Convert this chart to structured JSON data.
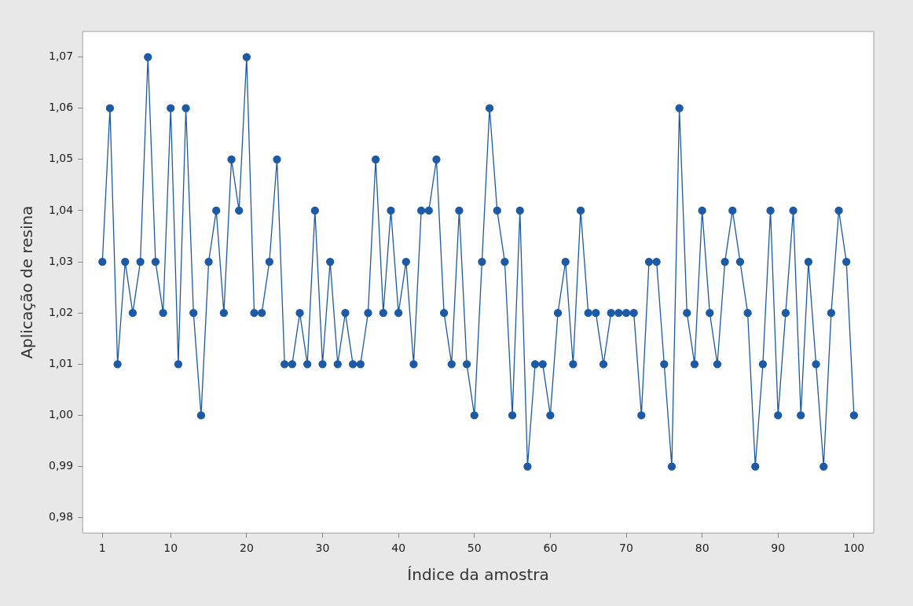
{
  "chart_data": {
    "type": "line",
    "xlabel": "Índice da amostra",
    "ylabel": "Aplicação de resina",
    "x": [
      1,
      2,
      3,
      4,
      5,
      6,
      7,
      8,
      9,
      10,
      11,
      12,
      13,
      14,
      15,
      16,
      17,
      18,
      19,
      20,
      21,
      22,
      23,
      24,
      25,
      26,
      27,
      28,
      29,
      30,
      31,
      32,
      33,
      34,
      35,
      36,
      37,
      38,
      39,
      40,
      41,
      42,
      43,
      44,
      45,
      46,
      47,
      48,
      49,
      50,
      51,
      52,
      53,
      54,
      55,
      56,
      57,
      58,
      59,
      60,
      61,
      62,
      63,
      64,
      65,
      66,
      67,
      68,
      69,
      70,
      71,
      72,
      73,
      74,
      75,
      76,
      77,
      78,
      79,
      80,
      81,
      82,
      83,
      84,
      85,
      86,
      87,
      88,
      89,
      90,
      91,
      92,
      93,
      94,
      95,
      96,
      97,
      98,
      99,
      100
    ],
    "series": [
      {
        "color": "#1c5aa6",
        "values": [
          1.03,
          1.06,
          1.01,
          1.03,
          1.02,
          1.03,
          1.07,
          1.03,
          1.02,
          1.06,
          1.01,
          1.06,
          1.02,
          1.0,
          1.03,
          1.04,
          1.02,
          1.05,
          1.04,
          1.07,
          1.02,
          1.02,
          1.03,
          1.05,
          1.01,
          1.01,
          1.02,
          1.01,
          1.04,
          1.01,
          1.03,
          1.01,
          1.02,
          1.01,
          1.01,
          1.02,
          1.05,
          1.02,
          1.04,
          1.02,
          1.03,
          1.01,
          1.04,
          1.04,
          1.05,
          1.02,
          1.01,
          1.04,
          1.01,
          1.0,
          1.03,
          1.06,
          1.04,
          1.03,
          1.0,
          1.04,
          0.99,
          1.01,
          1.01,
          1.0,
          1.02,
          1.03,
          1.01,
          1.04,
          1.02,
          1.02,
          1.01,
          1.02,
          1.02,
          1.02,
          1.02,
          1.0,
          1.03,
          1.03,
          1.01,
          0.99,
          1.06,
          1.02,
          1.01,
          1.04,
          1.02,
          1.01,
          1.03,
          1.04,
          1.03,
          1.02,
          0.99,
          1.01,
          1.04,
          1.0,
          1.02,
          1.04,
          1.0,
          1.03,
          1.01,
          0.99,
          1.02,
          1.04,
          1.03,
          1.0
        ]
      }
    ],
    "xlim": [
      -1.6,
      102.6
    ],
    "xticks": [
      1,
      10,
      20,
      30,
      40,
      50,
      60,
      70,
      80,
      90,
      100
    ],
    "ylim": [
      0.977,
      1.075
    ],
    "yticks": [
      {
        "value": 0.98,
        "label": "0,98"
      },
      {
        "value": 0.99,
        "label": "0,99"
      },
      {
        "value": 1.0,
        "label": "1,00"
      },
      {
        "value": 1.01,
        "label": "1,01"
      },
      {
        "value": 1.02,
        "label": "1,02"
      },
      {
        "value": 1.03,
        "label": "1,03"
      },
      {
        "value": 1.04,
        "label": "1,04"
      },
      {
        "value": 1.05,
        "label": "1,05"
      },
      {
        "value": 1.06,
        "label": "1,06"
      },
      {
        "value": 1.07,
        "label": "1,07"
      }
    ],
    "grid": false,
    "legend": false,
    "marker": "circle",
    "line_style": "solid"
  }
}
